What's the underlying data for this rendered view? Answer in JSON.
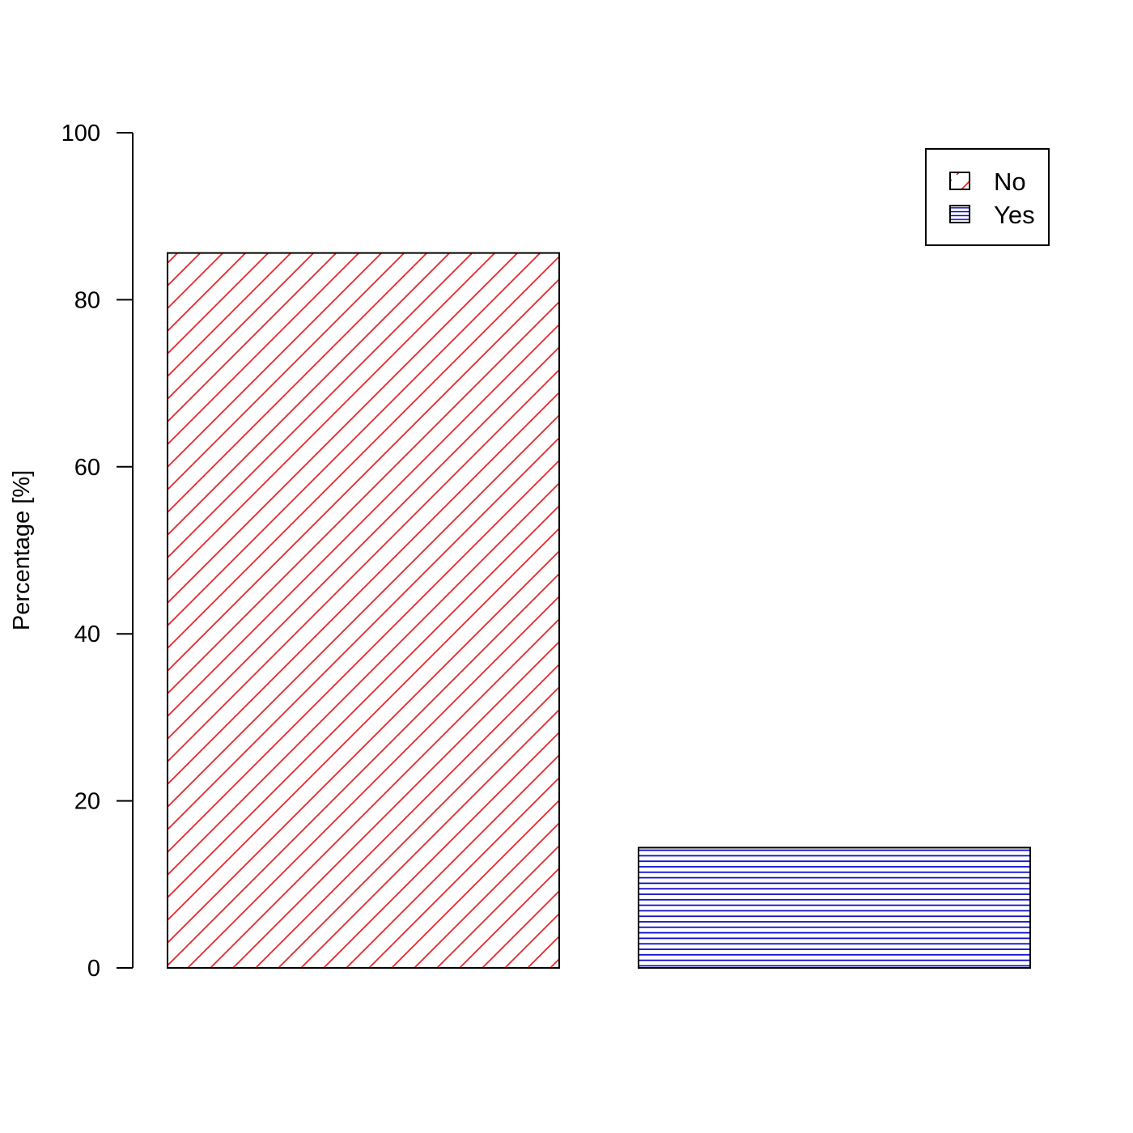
{
  "chart_data": {
    "type": "bar",
    "title": "",
    "xlabel": "",
    "ylabel": "Percentage [%]",
    "ylim": [
      0,
      100
    ],
    "y_ticks": [
      0,
      20,
      40,
      60,
      80,
      100
    ],
    "grid": false,
    "legend_position": "top-right",
    "series": [
      {
        "name": "No",
        "value": 85.6,
        "color": "#e8262a",
        "pattern": "diagonal-hatch"
      },
      {
        "name": "Yes",
        "value": 14.4,
        "color": "#0000c8",
        "pattern": "horizontal-lines"
      }
    ]
  }
}
